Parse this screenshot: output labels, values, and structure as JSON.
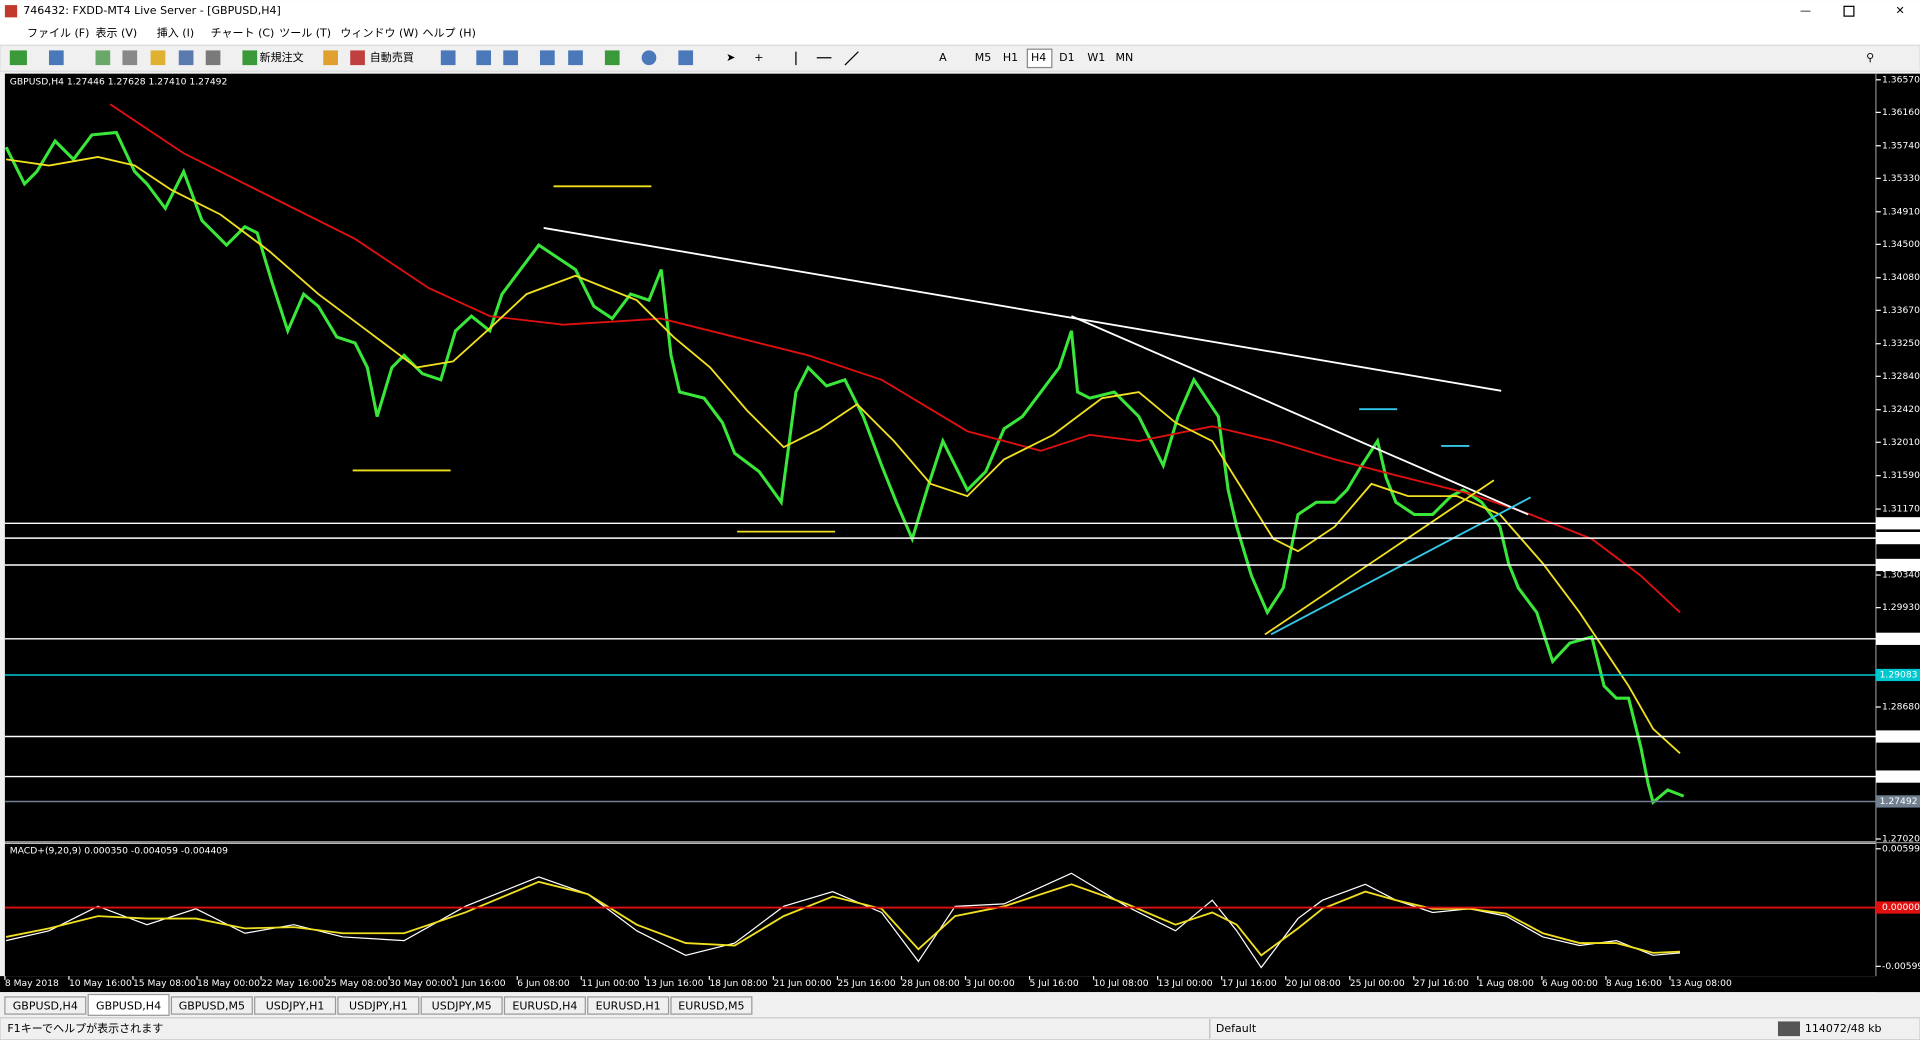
{
  "window": {
    "title": "746432: FXDD-MT4 Live Server - [GBPUSD,H4]"
  },
  "menu": [
    "ファイル (F)",
    "表示 (V)",
    "挿入 (I)",
    "チャート (C)",
    "ツール (T)",
    "ウィンドウ (W)",
    "ヘルプ (H)"
  ],
  "toolbar": {
    "new_order": "新規注文",
    "auto_trading": "自動売買",
    "timeframes": [
      "M5",
      "H1",
      "H4",
      "D1",
      "W1",
      "MN"
    ],
    "active_timeframe": "H4"
  },
  "chart": {
    "header": "GBPUSD,H4  1.27446 1.27628 1.27410 1.27492",
    "price_axis": {
      "ylim": [
        1.2702,
        1.3657
      ],
      "ticks": [
        {
          "value": 1.3657,
          "label": "1.36570"
        },
        {
          "value": 1.3616,
          "label": "1.36160"
        },
        {
          "value": 1.3574,
          "label": "1.35740"
        },
        {
          "value": 1.3533,
          "label": "1.35330"
        },
        {
          "value": 1.3491,
          "label": "1.34910"
        },
        {
          "value": 1.345,
          "label": "1.34500"
        },
        {
          "value": 1.3408,
          "label": "1.34080"
        },
        {
          "value": 1.3367,
          "label": "1.33670"
        },
        {
          "value": 1.3325,
          "label": "1.33250"
        },
        {
          "value": 1.3284,
          "label": "1.32840"
        },
        {
          "value": 1.3242,
          "label": "1.32420"
        },
        {
          "value": 1.3201,
          "label": "1.32010"
        },
        {
          "value": 1.3159,
          "label": "1.31590"
        },
        {
          "value": 1.3117,
          "label": "1.31170"
        },
        {
          "value": 1.3034,
          "label": "1.30340"
        },
        {
          "value": 1.2993,
          "label": "1.29930"
        },
        {
          "value": 1.2868,
          "label": "1.28680"
        },
        {
          "value": 1.2702,
          "label": "1.27020"
        }
      ],
      "levels": [
        {
          "value": 1.30991,
          "color": "#ffffff"
        },
        {
          "value": 1.30805,
          "color": "#ffffff"
        },
        {
          "value": 1.30467,
          "color": "#ffffff"
        },
        {
          "value": 1.29538,
          "color": "#ffffff"
        },
        {
          "value": 1.29083,
          "color": "#00c8d0"
        },
        {
          "value": 1.28309,
          "color": "#ffffff"
        },
        {
          "value": 1.27805,
          "color": "#ffffff"
        },
        {
          "value": 1.27492,
          "color": "#708090"
        }
      ]
    },
    "macd": {
      "header": "MACD+(9,20,9) 0.000350 -0.004059 -0.004409",
      "ylim": [
        -0.00599,
        0.00599
      ],
      "ticks": [
        {
          "value": 0.00599,
          "label": "0.00599"
        },
        {
          "value": 0,
          "label": "0.00000"
        },
        {
          "value": -0.00599,
          "label": "-0.00599"
        }
      ]
    },
    "time_labels": [
      "8 May 2018",
      "10 May 16:00",
      "15 May 08:00",
      "18 May 00:00",
      "22 May 16:00",
      "25 May 08:00",
      "30 May 00:00",
      "1 Jun 16:00",
      "6 Jun 08:00",
      "11 Jun 00:00",
      "13 Jun 16:00",
      "18 Jun 08:00",
      "21 Jun 00:00",
      "25 Jun 16:00",
      "28 Jun 08:00",
      "3 Jul 00:00",
      "5 Jul 16:00",
      "10 Jul 08:00",
      "13 Jul 00:00",
      "17 Jul 16:00",
      "20 Jul 08:00",
      "25 Jul 00:00",
      "27 Jul 16:00",
      "1 Aug 08:00",
      "6 Aug 00:00",
      "8 Aug 16:00",
      "13 Aug 08:00"
    ]
  },
  "tabs": [
    "GBPUSD,H4",
    "GBPUSD,H4",
    "GBPUSD,M5",
    "USDJPY,H1",
    "USDJPY,H1",
    "USDJPY,M5",
    "EURUSD,H4",
    "EURUSD,H1",
    "EURUSD,M5"
  ],
  "active_tab": 1,
  "status": {
    "help": "F1キーでヘルプが表示されます",
    "profile": "Default",
    "traffic": "114072/48 kb"
  }
}
